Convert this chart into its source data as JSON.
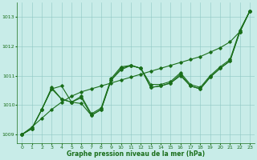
{
  "xlabel": "Graphe pression niveau de la mer (hPa)",
  "x": [
    0,
    1,
    2,
    3,
    4,
    5,
    6,
    7,
    8,
    9,
    10,
    11,
    12,
    13,
    14,
    15,
    16,
    17,
    18,
    19,
    20,
    21,
    22,
    23
  ],
  "line_main": [
    1009.0,
    1009.2,
    1009.85,
    1010.55,
    1010.65,
    1010.1,
    1010.05,
    1009.65,
    1009.85,
    1010.85,
    1011.25,
    1011.35,
    1011.25,
    1010.6,
    1010.65,
    1010.75,
    1011.05,
    1010.65,
    1010.55,
    1010.95,
    1011.25,
    1011.5,
    1012.5,
    1013.2
  ],
  "line_smooth": [
    1009.0,
    1009.25,
    1009.55,
    1009.85,
    1010.1,
    1010.3,
    1010.45,
    1010.55,
    1010.65,
    1010.75,
    1010.85,
    1010.95,
    1011.05,
    1011.15,
    1011.25,
    1011.35,
    1011.45,
    1011.55,
    1011.65,
    1011.8,
    1011.95,
    1012.15,
    1012.5,
    1013.2
  ],
  "line_extra1": [
    1009.0,
    1009.2,
    1009.85,
    1010.55,
    1010.2,
    1010.1,
    1010.3,
    1009.7,
    1009.9,
    1010.9,
    1011.3,
    1011.35,
    1011.25,
    1010.7,
    1010.7,
    1010.8,
    1011.1,
    1010.7,
    1010.6,
    1011.0,
    1011.3,
    1011.55,
    1012.55,
    1013.2
  ],
  "line_extra2": [
    1009.0,
    1009.2,
    1009.85,
    1010.6,
    1010.2,
    1010.1,
    1010.25,
    1009.65,
    1009.85,
    1010.85,
    1011.2,
    1011.35,
    1011.25,
    1010.6,
    1010.65,
    1010.75,
    1011.0,
    1010.65,
    1010.55,
    1010.95,
    1011.25,
    1011.5,
    1012.5,
    1013.2
  ],
  "line_color": "#1a6e1a",
  "bg_color": "#c8ece8",
  "grid_color": "#8ec8c4",
  "ylim": [
    1008.7,
    1013.5
  ],
  "yticks": [
    1009,
    1010,
    1011,
    1012,
    1013
  ],
  "xticks": [
    0,
    1,
    2,
    3,
    4,
    5,
    6,
    7,
    8,
    9,
    10,
    11,
    12,
    13,
    14,
    15,
    16,
    17,
    18,
    19,
    20,
    21,
    22,
    23
  ]
}
